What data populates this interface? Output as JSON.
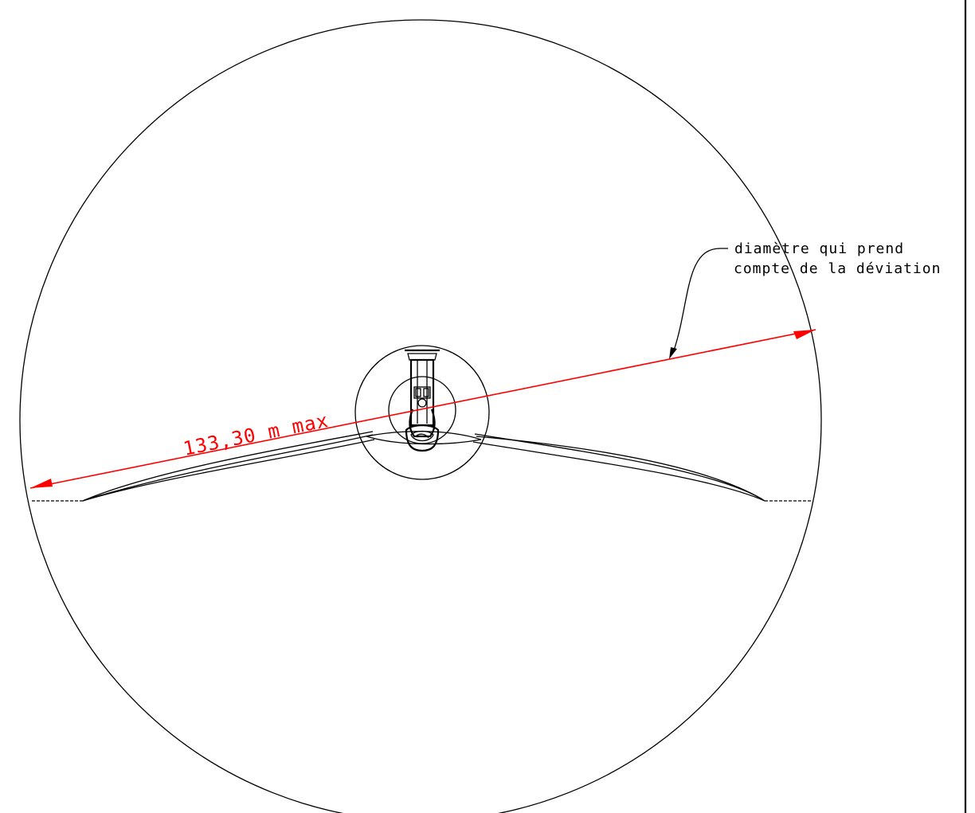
{
  "dimension": {
    "label": "133,30 m max",
    "color": "#ff0000"
  },
  "annotation": {
    "line1": "diamètre qui prend",
    "line2": "compte de la déviation"
  },
  "colors": {
    "linework": "#000000",
    "dimension": "#ff0000",
    "background": "#ffffff"
  }
}
